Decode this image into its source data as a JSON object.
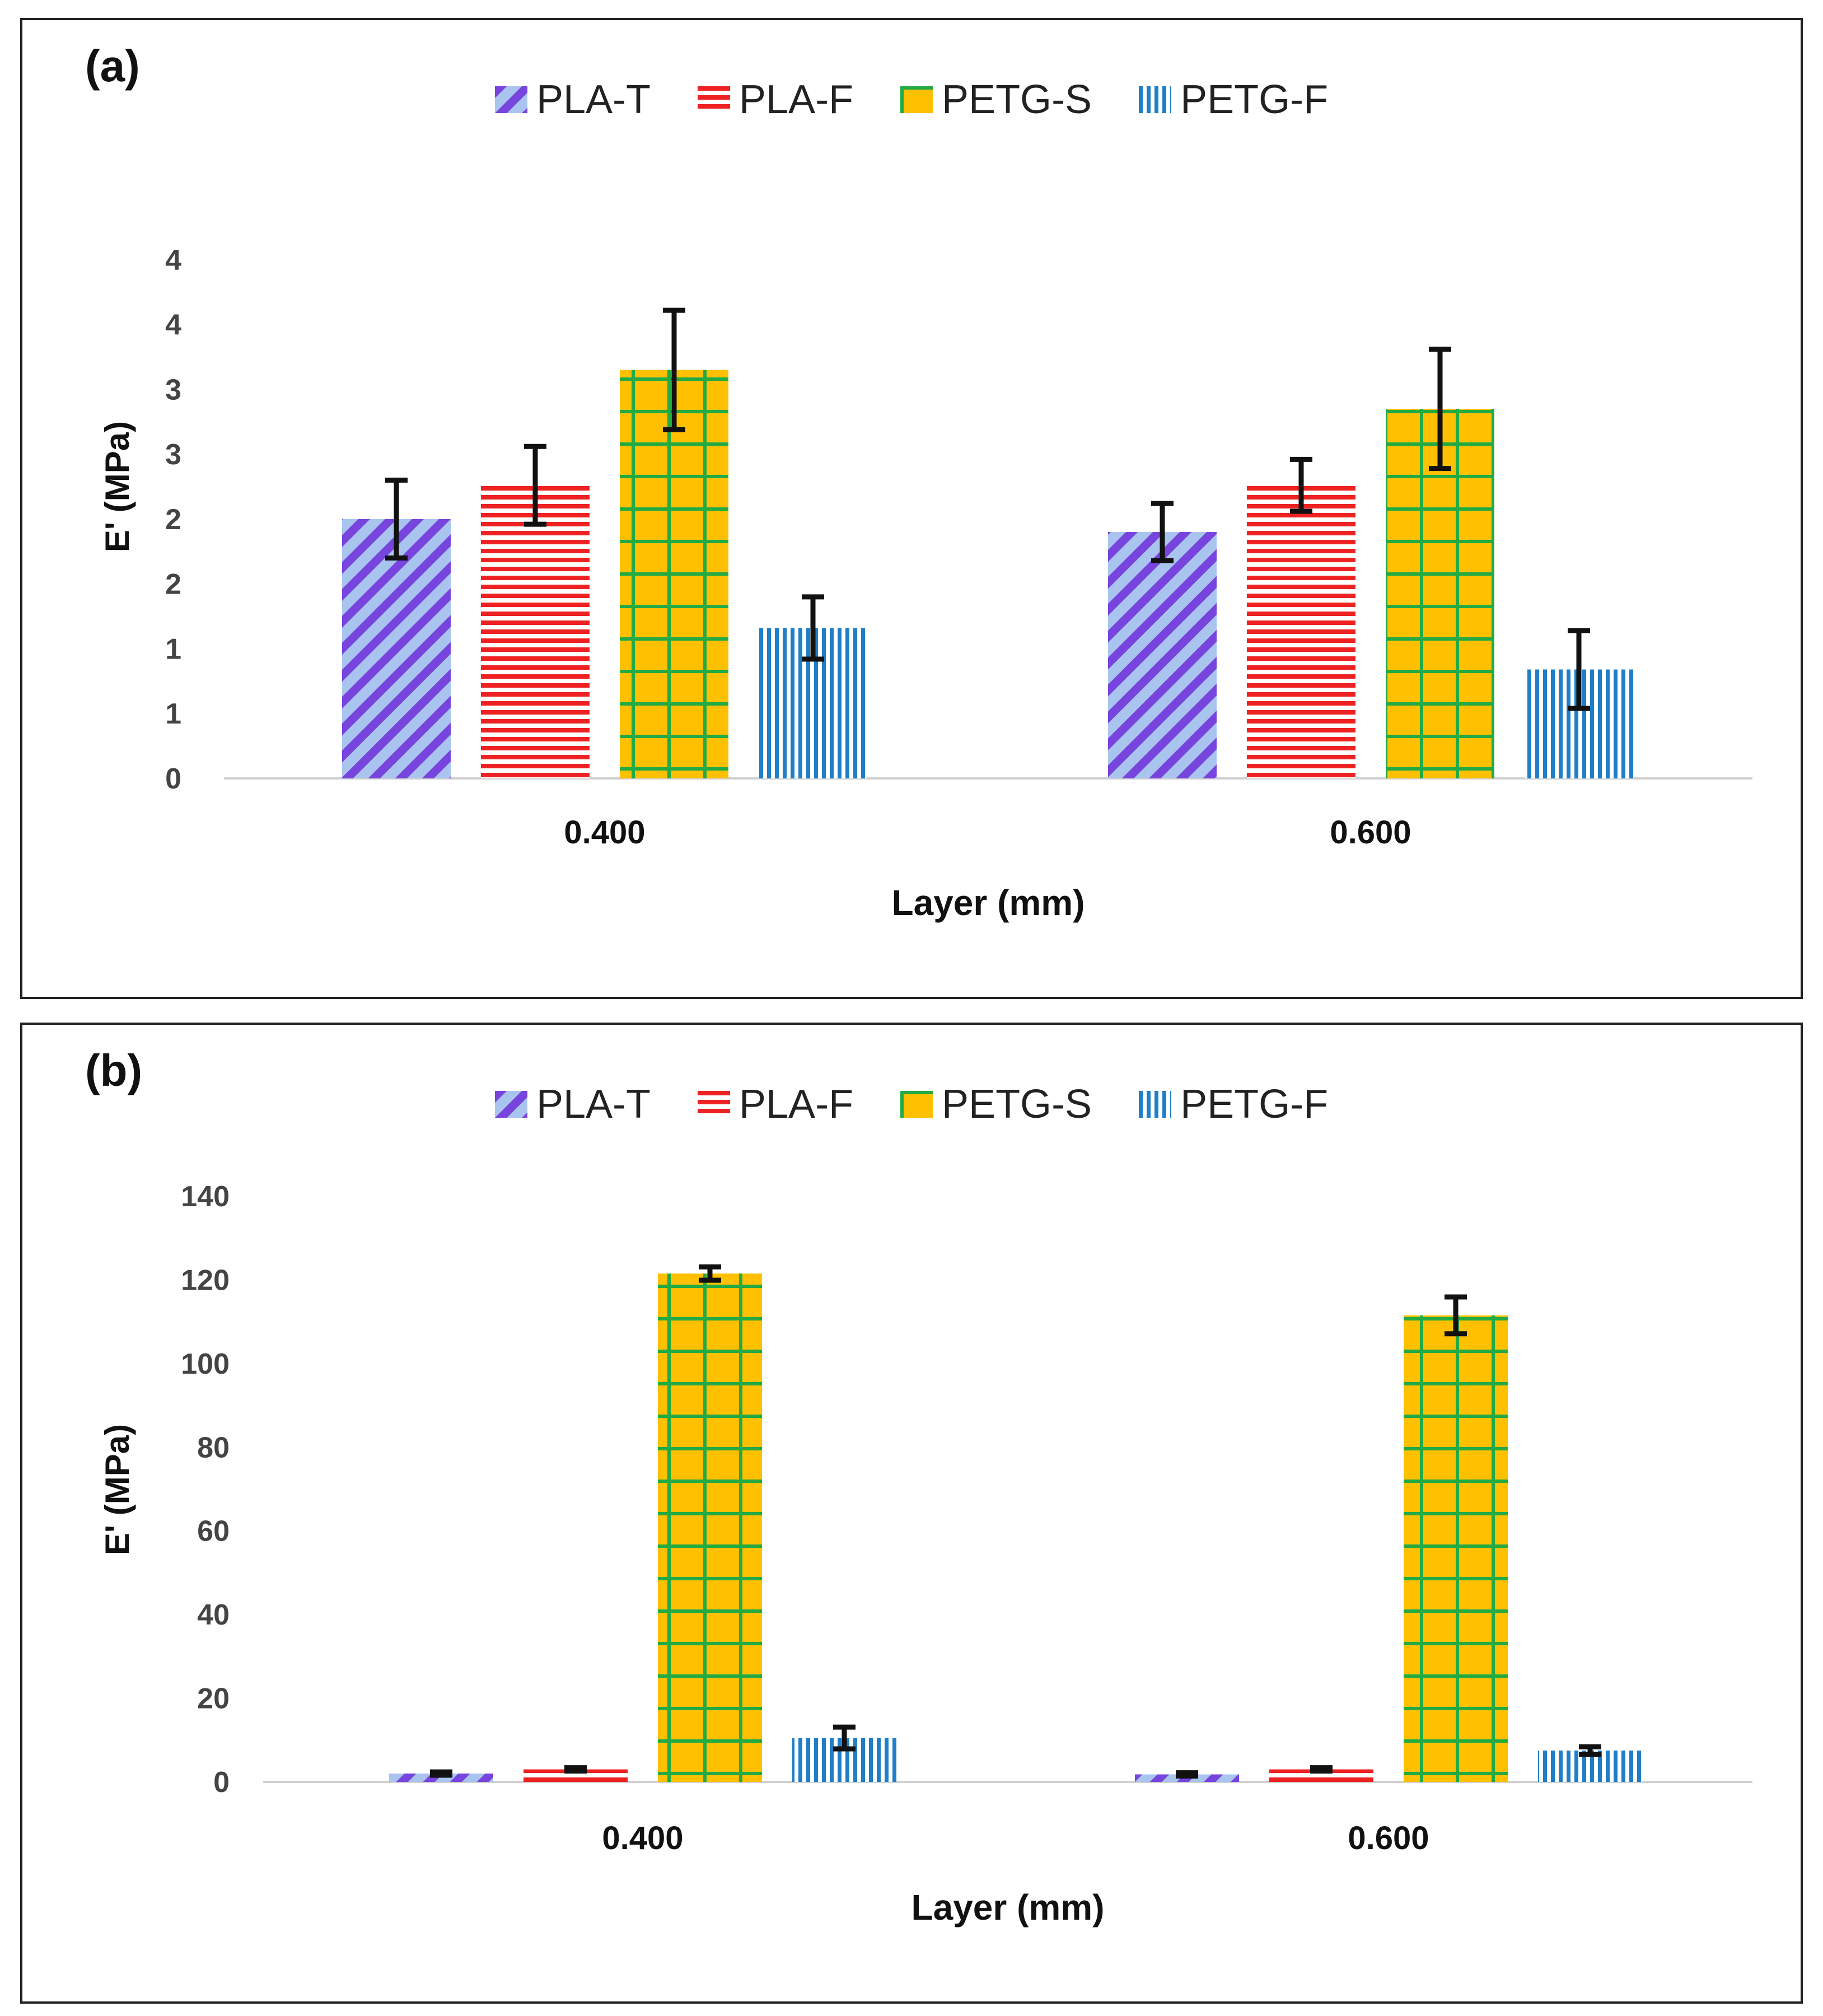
{
  "chart_data": [
    {
      "type": "bar",
      "panel_label": "(a)",
      "title": "",
      "xlabel": "Layer (mm)",
      "ylabel": "E' (MPa)",
      "categories": [
        "0.400",
        "0.600"
      ],
      "ylim": [
        0,
        4.5
      ],
      "yticks": [
        0,
        0.5,
        1,
        1.5,
        2,
        2.5,
        3,
        3.5,
        4
      ],
      "ytick_labels": [
        "0",
        "1",
        "1",
        "2",
        "2",
        "3",
        "3",
        "4",
        "4"
      ],
      "legend_position": "top-center",
      "series": [
        {
          "name": "PLA-T",
          "pattern": "diagonal",
          "values": [
            2.0,
            1.9
          ],
          "errors": [
            0.3,
            0.22
          ]
        },
        {
          "name": "PLA-F",
          "pattern": "horizontal",
          "values": [
            2.26,
            2.26
          ],
          "errors": [
            0.3,
            0.2
          ]
        },
        {
          "name": "PETG-S",
          "pattern": "grid",
          "values": [
            3.15,
            2.85
          ],
          "errors": [
            0.46,
            0.46
          ]
        },
        {
          "name": "PETG-F",
          "pattern": "vertical",
          "values": [
            1.16,
            0.84
          ],
          "errors": [
            0.24,
            0.3
          ]
        }
      ]
    },
    {
      "type": "bar",
      "panel_label": "(b)",
      "title": "",
      "xlabel": "Layer (mm)",
      "ylabel": "E' (MPa)",
      "categories": [
        "0.400",
        "0.600"
      ],
      "ylim": [
        0,
        140
      ],
      "yticks": [
        0,
        20,
        40,
        60,
        80,
        100,
        120,
        140
      ],
      "ytick_labels": [
        "0",
        "20",
        "40",
        "60",
        "80",
        "100",
        "120",
        "140"
      ],
      "legend_position": "top-center",
      "series": [
        {
          "name": "PLA-T",
          "pattern": "diagonal",
          "values": [
            2.0,
            1.8
          ],
          "errors": [
            0.4,
            0.4
          ]
        },
        {
          "name": "PLA-F",
          "pattern": "horizontal",
          "values": [
            3.0,
            3.0
          ],
          "errors": [
            0.4,
            0.4
          ]
        },
        {
          "name": "PETG-S",
          "pattern": "grid",
          "values": [
            121.5,
            111.5
          ],
          "errors": [
            1.6,
            4.4
          ]
        },
        {
          "name": "PETG-F",
          "pattern": "vertical",
          "values": [
            10.5,
            7.5
          ],
          "errors": [
            2.6,
            0.9
          ]
        }
      ]
    }
  ],
  "colors": {
    "pla_t_bg": "#a9c4ef",
    "pla_t_fg": "#7744dd",
    "pla_f_bg": "#ffffff",
    "pla_f_fg": "#ee2222",
    "petg_s_bg": "#ffc000",
    "petg_s_fg": "#22aa44",
    "petg_f_bg": "#ffffff",
    "petg_f_fg": "#1f7ec8",
    "axis": "#d0d0d0",
    "error_bar": "#111111"
  }
}
